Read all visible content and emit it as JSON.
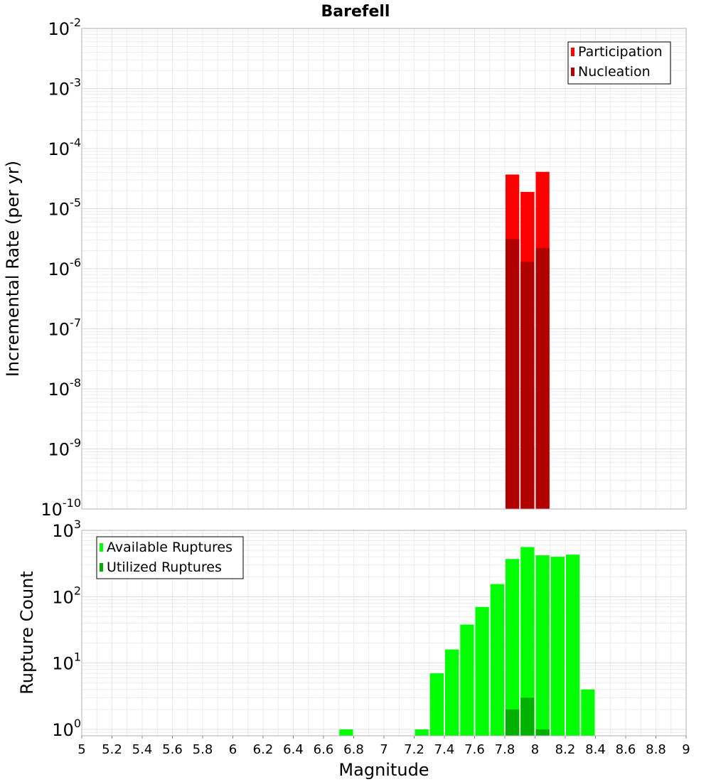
{
  "chart_data": [
    {
      "type": "bar",
      "title": "Barefell",
      "xlabel": "",
      "ylabel": "Incremental Rate (per yr)",
      "yscale": "log",
      "ylim": [
        1e-10,
        0.01
      ],
      "xlim": [
        5,
        9
      ],
      "bar_width": 0.1,
      "grid": true,
      "legend_position": "top-right",
      "x_tick_labels": [],
      "y_ticks": [
        {
          "base": "10",
          "exp": "-10"
        },
        {
          "base": "10",
          "exp": "-9"
        },
        {
          "base": "10",
          "exp": "-8"
        },
        {
          "base": "10",
          "exp": "-7"
        },
        {
          "base": "10",
          "exp": "-6"
        },
        {
          "base": "10",
          "exp": "-5"
        },
        {
          "base": "10",
          "exp": "-4"
        },
        {
          "base": "10",
          "exp": "-3"
        },
        {
          "base": "10",
          "exp": "-2"
        }
      ],
      "series": [
        {
          "name": "Participation",
          "color": "#ff0000",
          "x": [
            7.85,
            7.95,
            8.05
          ],
          "values": [
            3.7e-05,
            1.9e-05,
            4.1e-05
          ]
        },
        {
          "name": "Nucleation",
          "color": "#b00000",
          "x": [
            7.85,
            7.95,
            8.05
          ],
          "values": [
            3.1e-06,
            1.3e-06,
            2.2e-06
          ]
        }
      ]
    },
    {
      "type": "bar",
      "title": "",
      "xlabel": "Magnitude",
      "ylabel": "Rupture Count",
      "yscale": "log",
      "ylim": [
        0.8,
        1000
      ],
      "xlim": [
        5,
        9
      ],
      "bar_width": 0.1,
      "grid": true,
      "legend_position": "top-left",
      "x_tick_labels": [
        "5",
        "5.2",
        "5.4",
        "5.6",
        "5.8",
        "6",
        "6.2",
        "6.4",
        "6.6",
        "6.8",
        "7",
        "7.2",
        "7.4",
        "7.6",
        "7.8",
        "8",
        "8.2",
        "8.4",
        "8.6",
        "8.8",
        "9"
      ],
      "y_ticks": [
        {
          "base": "10",
          "exp": "0"
        },
        {
          "base": "10",
          "exp": "1"
        },
        {
          "base": "10",
          "exp": "2"
        },
        {
          "base": "10",
          "exp": "3"
        }
      ],
      "series": [
        {
          "name": "Available Ruptures",
          "color": "#00ff00",
          "x": [
            6.75,
            7.25,
            7.35,
            7.45,
            7.55,
            7.65,
            7.75,
            7.85,
            7.95,
            8.05,
            8.15,
            8.25,
            8.35
          ],
          "values": [
            1,
            1,
            7,
            16,
            38,
            70,
            155,
            370,
            560,
            420,
            400,
            430,
            4
          ]
        },
        {
          "name": "Utilized Ruptures",
          "color": "#00b000",
          "x": [
            7.85,
            7.95,
            8.05
          ],
          "values": [
            2,
            3,
            1
          ]
        }
      ]
    }
  ]
}
